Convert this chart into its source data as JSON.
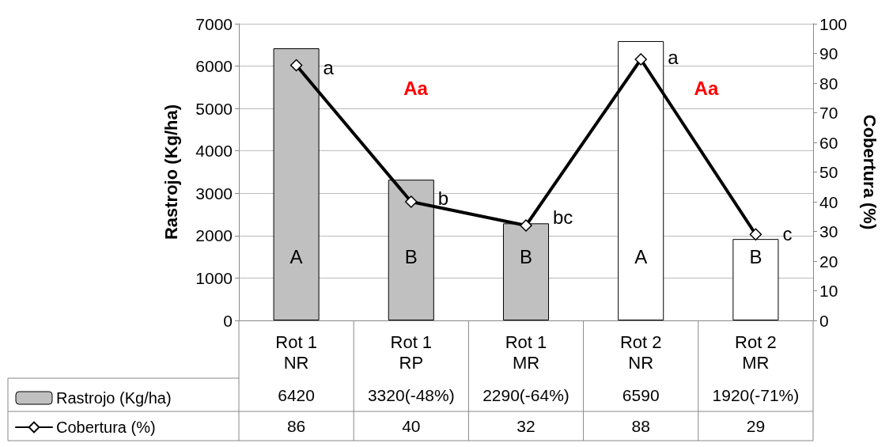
{
  "chart_data": {
    "type": "bar",
    "ylabel": "Rastrojo (Kg/ha)",
    "y2label": "Cobertura (%)",
    "categories": [
      "Rot 1\nNR",
      "Rot 1\nRP",
      "Rot 1\nMR",
      "Rot 2\nNR",
      "Rot 2\nMR"
    ],
    "series": [
      {
        "name": "Rastrojo (Kg/ha)",
        "type": "bar",
        "color": "#c0c0c0",
        "colors": [
          "#c0c0c0",
          "#c0c0c0",
          "#c0c0c0",
          "#ffffff",
          "#ffffff"
        ],
        "values": [
          6420,
          3320,
          2290,
          6590,
          1920
        ],
        "value_labels": [
          "6420",
          "3320(-48%)",
          "2290(-64%)",
          "6590",
          "1920(-71%)"
        ]
      },
      {
        "name": "Cobertura (%)",
        "type": "line",
        "axis": "y2",
        "color": "#000000",
        "values": [
          86,
          40,
          32,
          88,
          29
        ],
        "value_labels": [
          "86",
          "40",
          "32",
          "88",
          "29"
        ]
      }
    ],
    "ylim": [
      0,
      7000
    ],
    "yticks": [
      0,
      1000,
      2000,
      3000,
      4000,
      5000,
      6000,
      7000
    ],
    "y2lim": [
      0,
      100
    ],
    "y2ticks": [
      0,
      10,
      20,
      30,
      40,
      50,
      60,
      70,
      80,
      90,
      100
    ],
    "grid": "y",
    "legend": "bottom left",
    "marker": "diamond",
    "line_style": "solid",
    "annotations": [
      "A",
      "B",
      "B",
      "A",
      "B",
      {
        "text": "a",
        "x": "Rot 1\nNR",
        "y": 5970
      },
      {
        "text": "b",
        "x": "Rot 1\nRP",
        "y": 2890
      },
      {
        "text": "bc",
        "x": "Rot 1\nMR",
        "y": 2430
      },
      {
        "text": "a",
        "x": "Rot 2\nNR",
        "y": 6215
      },
      {
        "text": "c",
        "x": "Rot 2\nMR",
        "y": 2050
      },
      "Aa",
      "Aa"
    ]
  }
}
